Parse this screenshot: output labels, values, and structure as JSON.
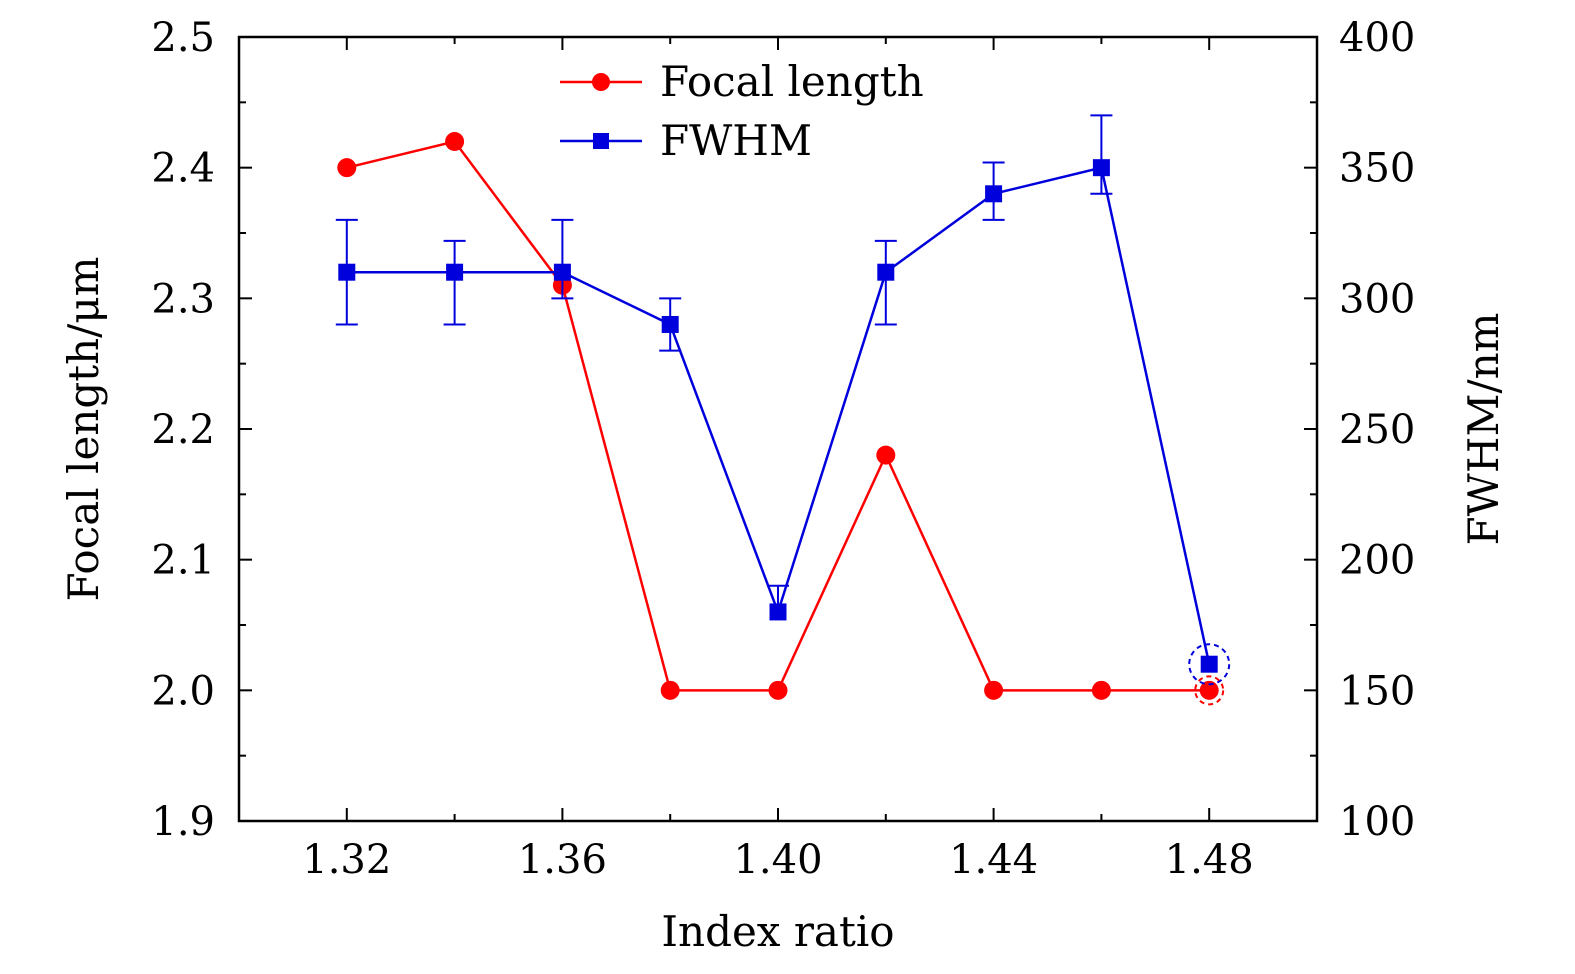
{
  "chart_data": {
    "type": "line",
    "title": "",
    "xlabel": "Index ratio",
    "ylabel": "Focal length/μm",
    "y2label": "FWHM/nm",
    "xlim": [
      1.3,
      1.5
    ],
    "ylim": [
      1.9,
      2.5
    ],
    "y2lim": [
      100,
      400
    ],
    "x_ticks": [
      "1.32",
      "1.36",
      "1.40",
      "1.44",
      "1.48"
    ],
    "y_ticks": [
      "1.9",
      "2.0",
      "2.1",
      "2.2",
      "2.3",
      "2.4",
      "2.5"
    ],
    "y2_ticks": [
      "100",
      "150",
      "200",
      "250",
      "300",
      "350",
      "400"
    ],
    "legend_position": "top-center",
    "x": [
      1.32,
      1.34,
      1.36,
      1.38,
      1.4,
      1.42,
      1.44,
      1.46,
      1.48
    ],
    "series": [
      {
        "name": "Focal length",
        "axis": "left",
        "color": "#ff0000",
        "marker": "circle",
        "values": [
          2.4,
          2.42,
          2.31,
          2.0,
          2.0,
          2.18,
          2.0,
          2.0,
          2.0
        ]
      },
      {
        "name": "FWHM",
        "axis": "right",
        "color": "#0000dd",
        "marker": "square",
        "values": [
          310,
          310,
          310,
          290,
          180,
          310,
          340,
          350,
          160
        ],
        "error_upper": [
          20,
          12,
          20,
          10,
          10,
          12,
          12,
          20,
          0
        ],
        "error_lower": [
          20,
          20,
          10,
          10,
          0,
          20,
          10,
          10,
          0
        ]
      }
    ],
    "highlight_circles": [
      {
        "series": "FWHM",
        "x": 1.48,
        "color": "#0000dd"
      },
      {
        "series": "Focal length",
        "x": 1.48,
        "color": "#ff0000"
      }
    ]
  }
}
